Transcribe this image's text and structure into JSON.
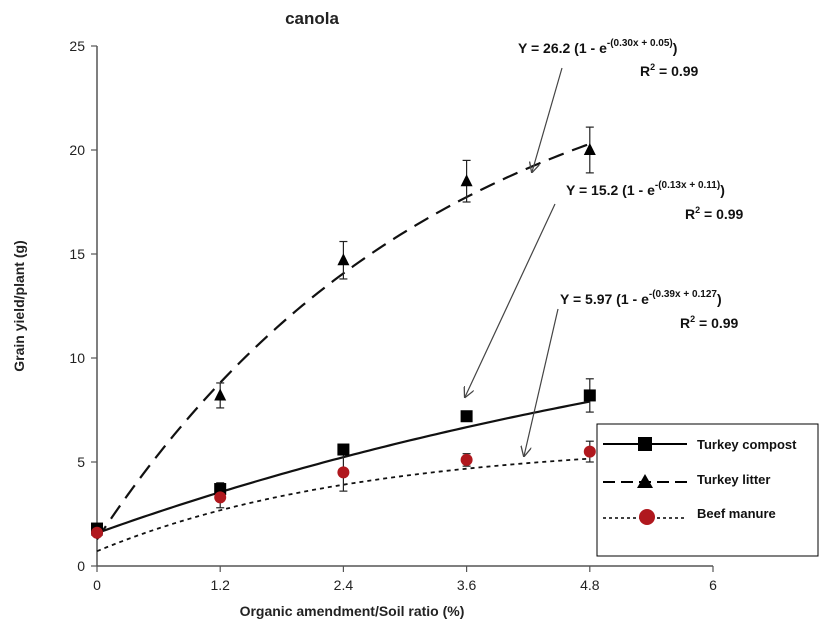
{
  "chart_data": {
    "type": "scatter",
    "title": "canola",
    "xlabel": "Organic amendment/Soil ratio (%)",
    "ylabel": "Grain yield/plant (g)",
    "xlim": [
      0,
      6
    ],
    "ylim": [
      0,
      25
    ],
    "x_ticks": [
      "0",
      "1.2",
      "2.4",
      "3.6",
      "4.8",
      "6"
    ],
    "y_ticks": [
      "0",
      "5",
      "10",
      "15",
      "20",
      "25"
    ],
    "grid": false,
    "legend_position": "bottom-right",
    "series": [
      {
        "name": "Turkey compost",
        "marker": "square",
        "line_style": "solid",
        "color": "#000000",
        "x": [
          0,
          1.2,
          2.4,
          3.6,
          4.8
        ],
        "y": [
          1.8,
          3.7,
          5.6,
          7.2,
          8.2
        ],
        "error": [
          0.1,
          0.3,
          0.2,
          0.2,
          0.8
        ],
        "fit": {
          "a": 15.2,
          "b": 0.13,
          "c": 0.11
        },
        "equation_main": "Y = 15.2 (1 - e",
        "equation_exp": "-(0.13x + 0.11)",
        "equation_close": ")",
        "r2_label": "R",
        "r2_value": " = 0.99"
      },
      {
        "name": "Turkey litter",
        "marker": "triangle",
        "line_style": "dashed",
        "color": "#000000",
        "x": [
          0,
          1.2,
          2.4,
          3.6,
          4.8
        ],
        "y": [
          1.7,
          8.2,
          14.7,
          18.5,
          20.0
        ],
        "error": [
          0.1,
          0.6,
          0.9,
          1.0,
          1.1
        ],
        "fit": {
          "a": 26.2,
          "b": 0.3,
          "c": 0.05
        },
        "equation_main": "Y = 26.2 (1 - e",
        "equation_exp": "-(0.30x + 0.05)",
        "equation_close": ")",
        "r2_label": "R",
        "r2_value": " = 0.99"
      },
      {
        "name": "Beef manure",
        "marker": "circle",
        "line_style": "dotted",
        "color": "#b0181e",
        "x": [
          0,
          1.2,
          2.4,
          3.6,
          4.8
        ],
        "y": [
          1.6,
          3.3,
          4.5,
          5.1,
          5.5
        ],
        "error": [
          0.1,
          0.5,
          0.9,
          0.3,
          0.5
        ],
        "fit": {
          "a": 5.97,
          "b": 0.39,
          "c": 0.127
        },
        "equation_main": "Y = 5.97 (1 - e",
        "equation_exp": "-(0.39x + 0.127",
        "equation_close": ")",
        "r2_label": "R",
        "r2_value": " = 0.99"
      }
    ]
  }
}
